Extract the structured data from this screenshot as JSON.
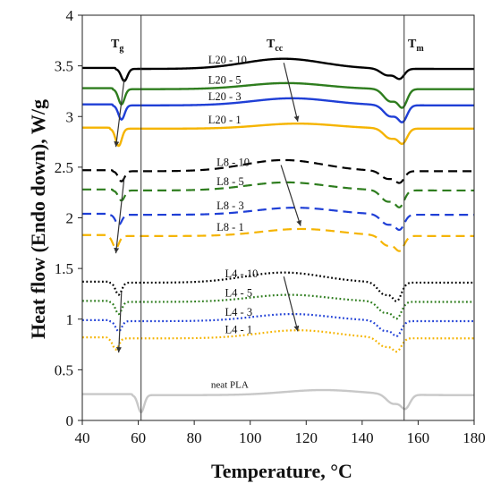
{
  "chart_data": {
    "type": "line",
    "xlabel": "Temperature, °C",
    "ylabel": "Heat flow (Endo down), W/g",
    "xlim": [
      40,
      180
    ],
    "ylim": [
      0,
      4
    ],
    "xticks": [
      "40",
      "60",
      "80",
      "100",
      "120",
      "140",
      "160",
      "180"
    ],
    "yticks": [
      "0",
      "0.5",
      "1",
      "1.5",
      "2",
      "2.5",
      "3",
      "3.5",
      "4"
    ],
    "grid": false,
    "legend": "none",
    "region_labels": {
      "tg": {
        "main": "T",
        "sub": "g"
      },
      "tcc": {
        "main": "T",
        "sub": "cc"
      },
      "tm": {
        "main": "T",
        "sub": "m"
      }
    },
    "vlines": [
      61,
      155
    ],
    "series": [
      {
        "name": "L20 - 10",
        "color": "#000000",
        "dash": "solid",
        "base": 3.47,
        "tg": 55,
        "tgDip": 0.12,
        "tccPeak": 112,
        "tccAmp": 0.1,
        "tm": 152,
        "tmDip": 0.12,
        "label_x": 85
      },
      {
        "name": "L20 - 5",
        "color": "#2e7d1e",
        "dash": "solid",
        "base": 3.27,
        "tg": 54,
        "tgDip": 0.15,
        "tccPeak": 113,
        "tccAmp": 0.06,
        "tm": 153,
        "tmDip": 0.22,
        "label_x": 85
      },
      {
        "name": "L20 - 3",
        "color": "#1f3fd6",
        "dash": "solid",
        "base": 3.11,
        "tg": 54,
        "tgDip": 0.14,
        "tccPeak": 115,
        "tccAmp": 0.07,
        "tm": 153,
        "tmDip": 0.2,
        "label_x": 85
      },
      {
        "name": "L20 - 1",
        "color": "#f5b400",
        "dash": "solid",
        "base": 2.88,
        "tg": 53,
        "tgDip": 0.17,
        "tccPeak": 117,
        "tccAmp": 0.05,
        "tm": 153,
        "tmDip": 0.18,
        "label_x": 85
      },
      {
        "name": "L8 - 10",
        "color": "#000000",
        "dash": "dashed",
        "base": 2.46,
        "tg": 54,
        "tgDip": 0.1,
        "tccPeak": 112,
        "tccAmp": 0.11,
        "tm": 152,
        "tmDip": 0.14,
        "label_x": 88
      },
      {
        "name": "L8 - 5",
        "color": "#2e7d1e",
        "dash": "dashed",
        "base": 2.27,
        "tg": 54,
        "tgDip": 0.1,
        "tccPeak": 113,
        "tccAmp": 0.08,
        "tm": 152,
        "tmDip": 0.2,
        "label_x": 88
      },
      {
        "name": "L8 - 3",
        "color": "#1f3fd6",
        "dash": "dashed",
        "base": 2.03,
        "tg": 53,
        "tgDip": 0.1,
        "tccPeak": 116,
        "tccAmp": 0.07,
        "tm": 152,
        "tmDip": 0.18,
        "label_x": 88
      },
      {
        "name": "L8 - 1",
        "color": "#f5b400",
        "dash": "dashed",
        "base": 1.82,
        "tg": 52,
        "tgDip": 0.12,
        "tccPeak": 118,
        "tccAmp": 0.07,
        "tm": 152,
        "tmDip": 0.18,
        "label_x": 88
      },
      {
        "name": "L4 - 10",
        "color": "#000000",
        "dash": "dotted",
        "base": 1.36,
        "tg": 53,
        "tgDip": 0.12,
        "tccPeak": 112,
        "tccAmp": 0.1,
        "tm": 151,
        "tmDip": 0.22,
        "label_x": 91
      },
      {
        "name": "L4 - 5",
        "color": "#2e7d1e",
        "dash": "dotted",
        "base": 1.17,
        "tg": 53,
        "tgDip": 0.12,
        "tccPeak": 114,
        "tccAmp": 0.07,
        "tm": 151,
        "tmDip": 0.2,
        "label_x": 91
      },
      {
        "name": "L4 - 3",
        "color": "#1f3fd6",
        "dash": "dotted",
        "base": 0.98,
        "tg": 53,
        "tgDip": 0.1,
        "tccPeak": 115,
        "tccAmp": 0.07,
        "tm": 151,
        "tmDip": 0.18,
        "label_x": 91
      },
      {
        "name": "L4 - 1",
        "color": "#f5b400",
        "dash": "dotted",
        "base": 0.81,
        "tg": 52,
        "tgDip": 0.11,
        "tccPeak": 117,
        "tccAmp": 0.08,
        "tm": 151,
        "tmDip": 0.16,
        "label_x": 91
      },
      {
        "name": "neat PLA",
        "color": "#c8c8c8",
        "dash": "solid",
        "base": 0.25,
        "tg": 61,
        "tgDip": 0.17,
        "tccPeak": 126,
        "tccAmp": 0.05,
        "tm": 154,
        "tmDip": 0.17,
        "label_x": 86
      }
    ],
    "arrows": [
      {
        "name": "tg-arrow",
        "x1": 55,
        "y1": 3.37,
        "x2": 52,
        "y2": 2.7
      },
      {
        "name": "tg-arrow",
        "x1": 55,
        "y1": 2.4,
        "x2": 52,
        "y2": 1.65
      },
      {
        "name": "tg-arrow",
        "x1": 54,
        "y1": 1.27,
        "x2": 53,
        "y2": 0.67
      },
      {
        "name": "tcc-arrow",
        "x1": 112,
        "y1": 3.53,
        "x2": 117,
        "y2": 2.95
      },
      {
        "name": "tcc-arrow",
        "x1": 111,
        "y1": 2.52,
        "x2": 118,
        "y2": 1.92
      },
      {
        "name": "tcc-arrow",
        "x1": 112,
        "y1": 1.42,
        "x2": 117,
        "y2": 0.88
      }
    ]
  }
}
